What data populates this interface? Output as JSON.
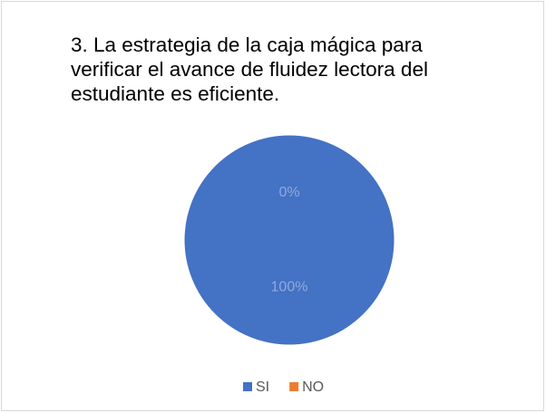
{
  "chart_data": {
    "type": "pie",
    "title": "3. La estrategia de la caja mágica para\nverificar el avance de fluidez lectora del\nestudiante es eficiente.",
    "categories": [
      "SI",
      "NO"
    ],
    "values": [
      100,
      0
    ],
    "value_labels": [
      "100%",
      "0%"
    ],
    "colors": [
      "#4472c4",
      "#ed7d31"
    ],
    "legend": "bottom"
  }
}
